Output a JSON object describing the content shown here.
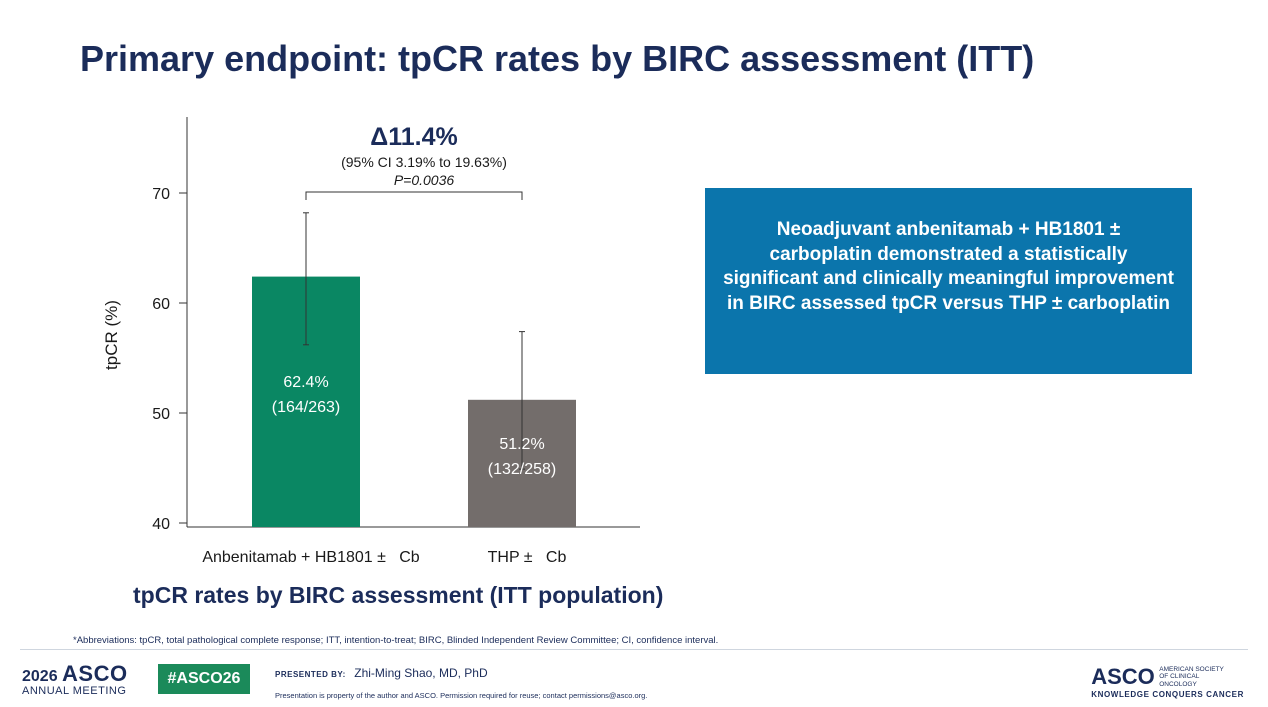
{
  "slide": {
    "title": "Primary endpoint: tpCR rates by BIRC assessment (ITT)",
    "callout": "Neoadjuvant anbenitamab + HB1801 ± carboplatin demonstrated a statistically significant and clinically meaningful improvement in BIRC assessed tpCR versus THP ± carboplatin",
    "chart_caption": "tpCR rates by BIRC assessment (ITT population)",
    "abbreviations": "*Abbreviations: tpCR, total pathological complete response; ITT, intention-to-treat; BIRC, Blinded Independent Review Committee; CI, confidence interval."
  },
  "footer": {
    "year": "2026",
    "asco": "ASCO",
    "annual_meeting": "ANNUAL MEETING",
    "hashtag": "#ASCO26",
    "presented_by": "PRESENTED BY:",
    "presenter": "Zhi-Ming Shao, MD, PhD",
    "note": "Presentation is property of the author and ASCO. Permission required for reuse; contact permissions@asco.org.",
    "org_logo_word": "ASCO",
    "org_name": "AMERICAN SOCIETY OF CLINICAL ONCOLOGY",
    "tagline": "KNOWLEDGE CONQUERS CANCER"
  },
  "chart_data": {
    "type": "bar",
    "categories": [
      "Anbenitamab + HB1801 ±   Cb",
      "THP ±   Cb"
    ],
    "values": [
      62.4,
      51.2
    ],
    "error_low": [
      56.2,
      44.9
    ],
    "error_high": [
      68.2,
      57.4
    ],
    "data_labels": [
      [
        "62.4%",
        "(164/263)"
      ],
      [
        "51.2%",
        "(132/258)"
      ]
    ],
    "colors": [
      "#0a8763",
      "#736d6b"
    ],
    "ylabel": "tpCR (%)",
    "ylim": [
      40,
      77
    ],
    "yticks": [
      40,
      50,
      60,
      70
    ],
    "annotation": {
      "delta": "Δ11.4%",
      "ci": "(95% CI 3.19% to 19.63%)",
      "p": "P=0.0036"
    }
  }
}
